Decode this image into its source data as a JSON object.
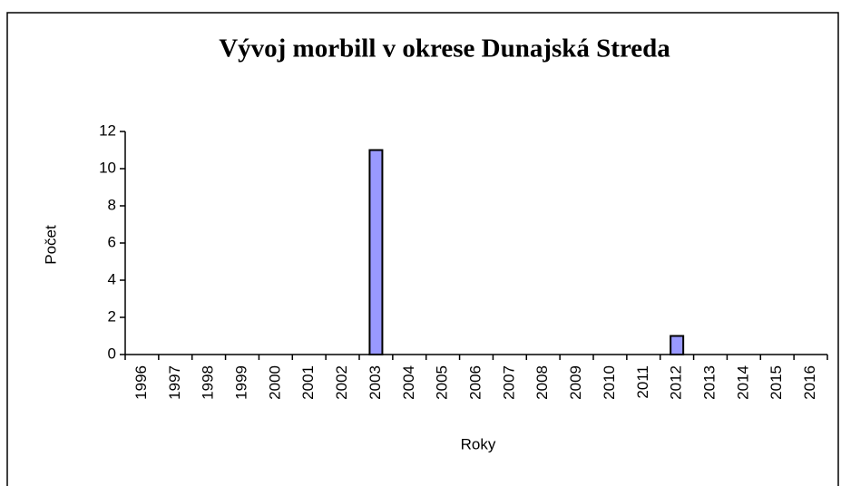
{
  "chart_data": {
    "type": "bar",
    "title": "Vývoj morbill v okrese Dunajská Streda",
    "x_label": "Roky",
    "y_label": "Počet",
    "categories": [
      "1996",
      "1997",
      "1998",
      "1999",
      "2000",
      "2001",
      "2002",
      "2003",
      "2004",
      "2005",
      "2006",
      "2007",
      "2008",
      "2009",
      "2010",
      "2011",
      "2012",
      "2013",
      "2014",
      "2015",
      "2016"
    ],
    "values": [
      0,
      0,
      0,
      0,
      0,
      0,
      0,
      11,
      0,
      0,
      0,
      0,
      0,
      0,
      0,
      0,
      1,
      0,
      0,
      0,
      0
    ],
    "color": "#9999ff",
    "ylim": [
      0,
      12
    ],
    "yticks": [
      0,
      2,
      4,
      6,
      8,
      10,
      12
    ],
    "grid": false
  }
}
